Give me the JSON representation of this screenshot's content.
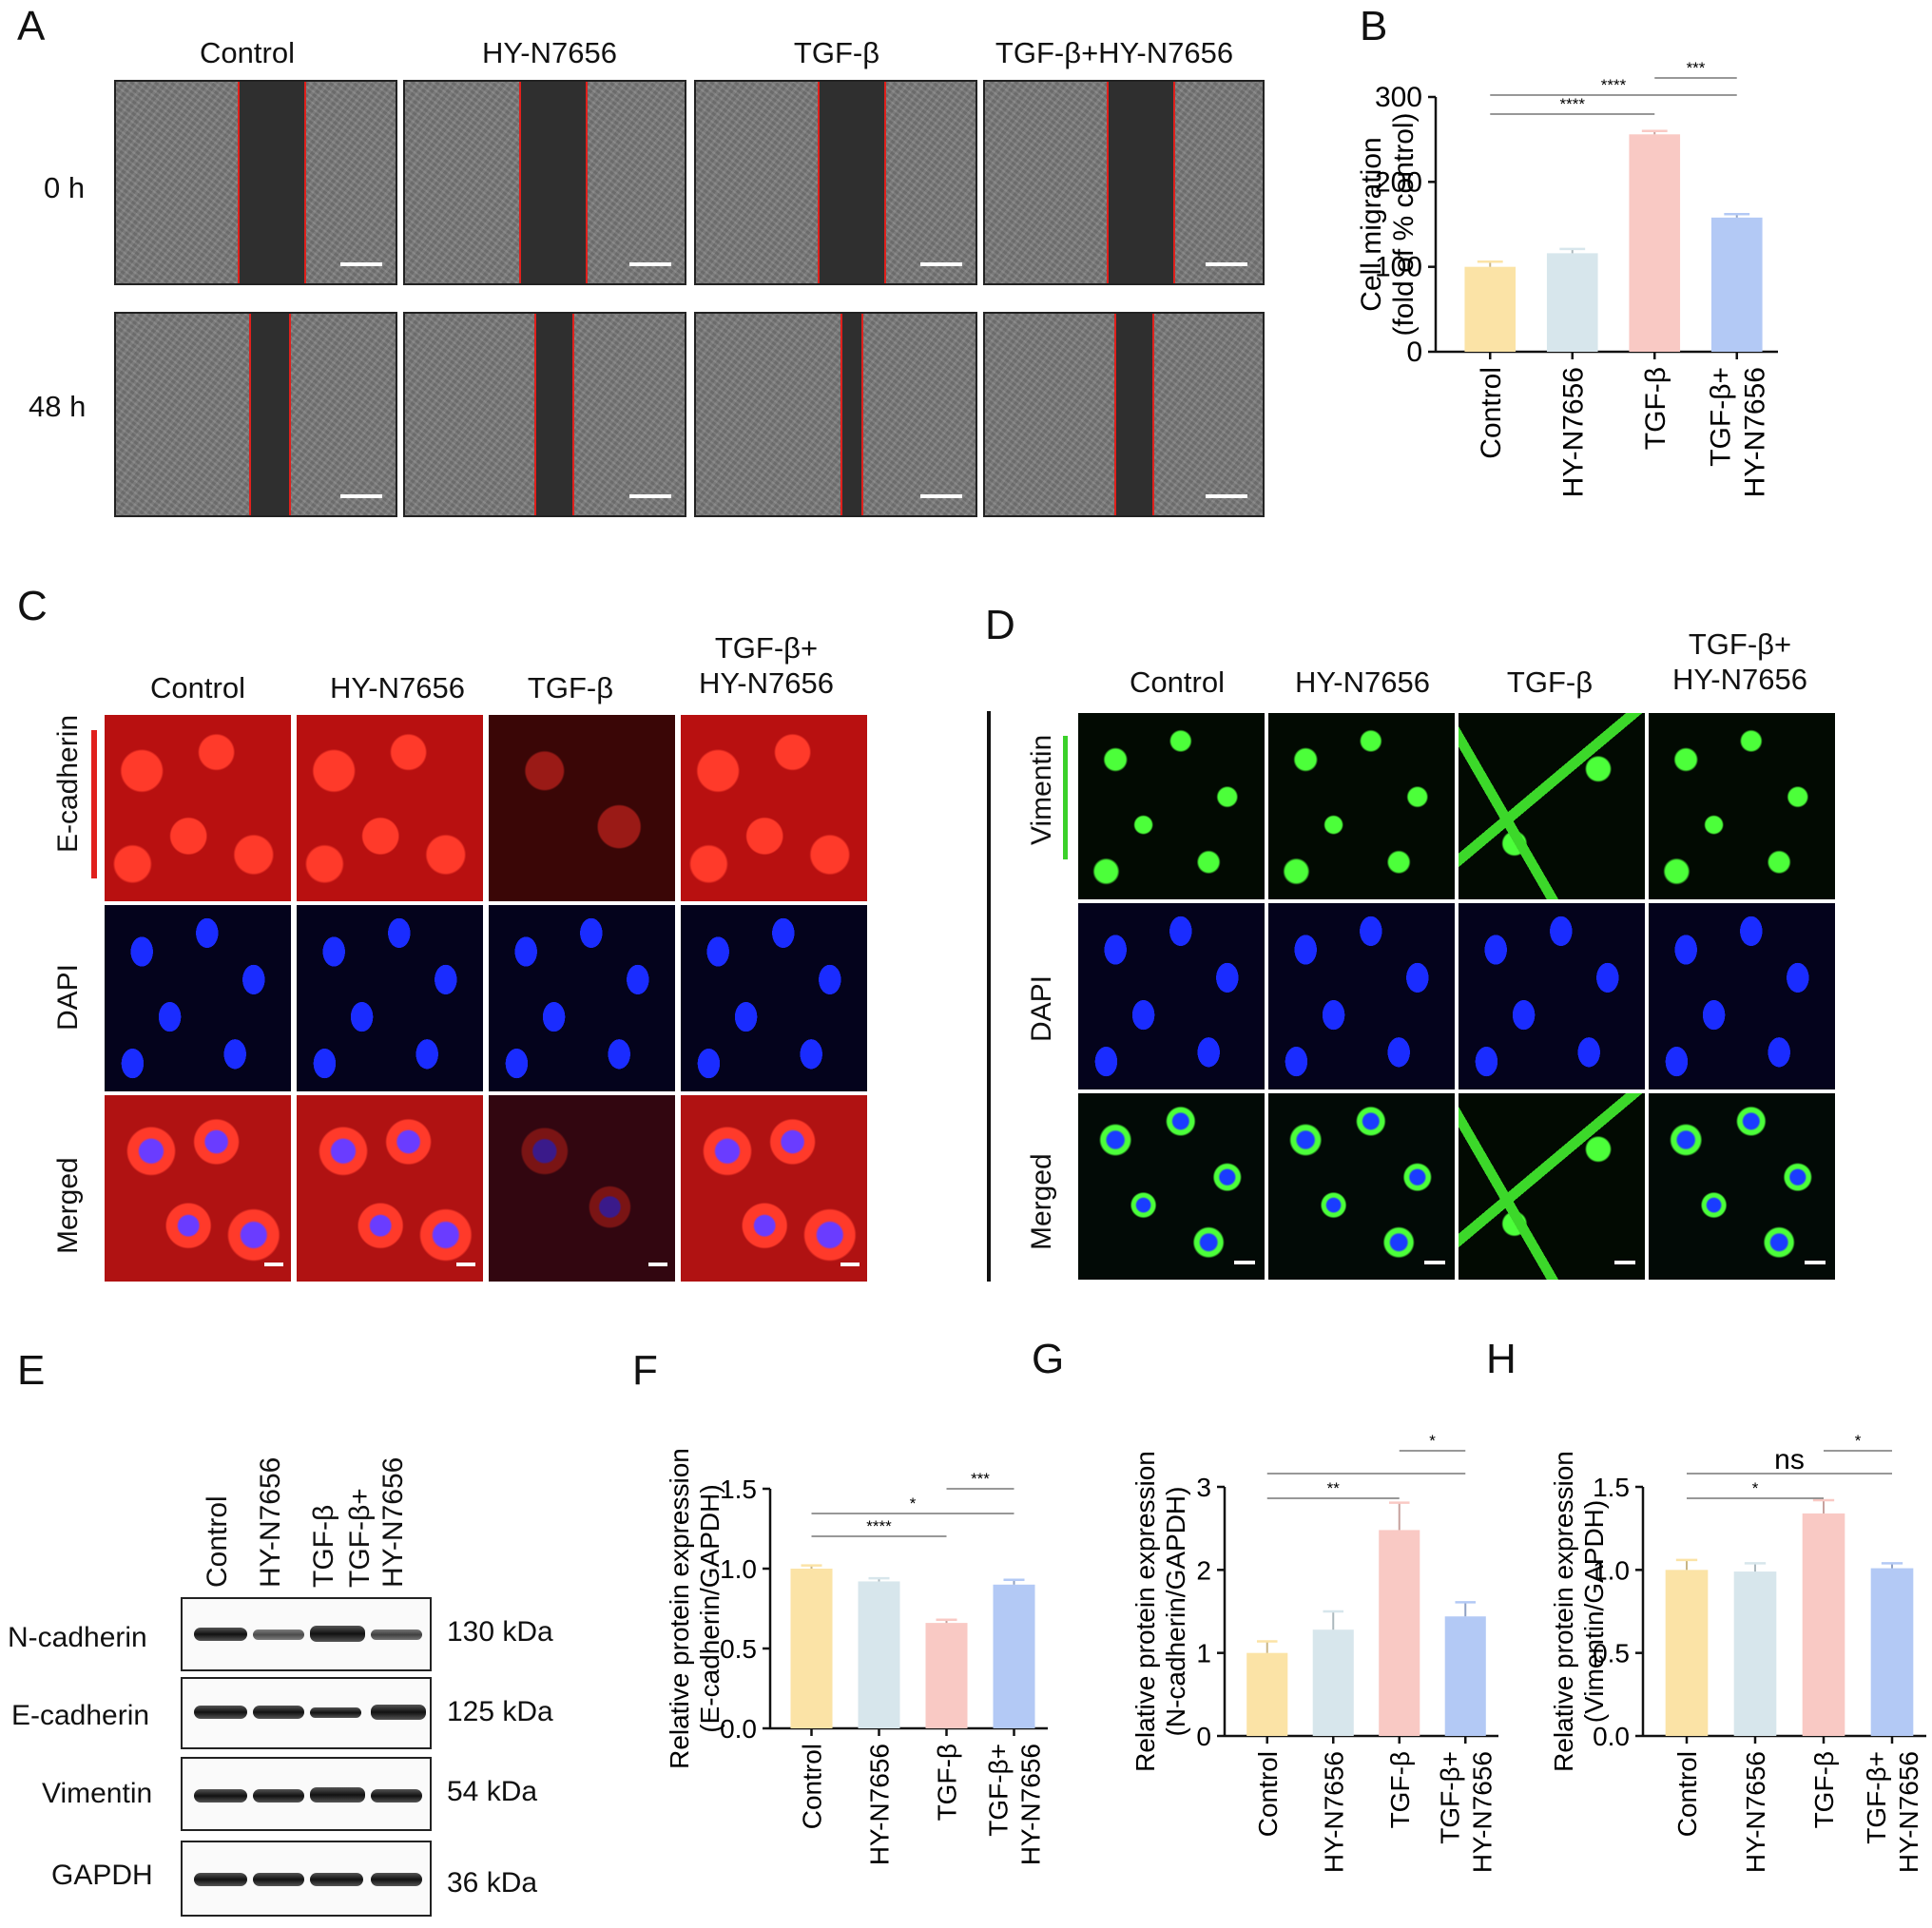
{
  "panel_letters": {
    "A": "A",
    "B": "B",
    "C": "C",
    "D": "D",
    "E": "E",
    "F": "F",
    "G": "G",
    "H": "H"
  },
  "panel_a": {
    "columns": [
      "Control",
      "HY-N7656",
      "TGF-β",
      "TGF-β+HY-N7656"
    ],
    "rows": [
      "0 h",
      "48 h"
    ]
  },
  "panel_c": {
    "columns": [
      "Control",
      "HY-N7656",
      "TGF-β",
      "TGF-β+\nHY-N7656"
    ],
    "rows": [
      "E-cadherin",
      "DAPI",
      "Merged"
    ],
    "marker_color": "#e0201c"
  },
  "panel_d": {
    "columns": [
      "Control",
      "HY-N7656",
      "TGF-β",
      "TGF-β+\nHY-N7656"
    ],
    "rows": [
      "Vimentin",
      "DAPI",
      "Merged"
    ],
    "marker_color": "#3bd12a"
  },
  "panel_e": {
    "lanes": [
      "Control",
      "HY-N7656",
      "TGF-β",
      "TGF-β+\nHY-N7656"
    ],
    "blots": [
      {
        "protein": "N-cadherin",
        "kda": "130 kDa"
      },
      {
        "protein": "E-cadherin",
        "kda": "125 kDa"
      },
      {
        "protein": "Vimentin",
        "kda": "54 kDa"
      },
      {
        "protein": "GAPDH",
        "kda": "36 kDa"
      }
    ]
  },
  "chart_data": [
    {
      "panel": "B",
      "type": "bar",
      "categories": [
        "Control",
        "HY-N7656",
        "TGF-β",
        "TGF-β+\nHY-N7656"
      ],
      "values": [
        100,
        116,
        256,
        158
      ],
      "errors": [
        6,
        5,
        4,
        4
      ],
      "ylabel": "Cell migration\n(fold of % control)",
      "ylim": [
        0,
        300
      ],
      "yticks": [
        "0",
        "100",
        "200",
        "300"
      ],
      "colors": [
        "#fbe3a6",
        "#d7e6ec",
        "#f9c9c4",
        "#b3c9f5"
      ],
      "significance": [
        {
          "from": 0,
          "to": 2,
          "label": "****"
        },
        {
          "from": 0,
          "to": 3,
          "label": "****"
        },
        {
          "from": 2,
          "to": 3,
          "label": "***"
        }
      ]
    },
    {
      "panel": "F",
      "type": "bar",
      "categories": [
        "Control",
        "HY-N7656",
        "TGF-β",
        "TGF-β+\nHY-N7656"
      ],
      "values": [
        1.0,
        0.92,
        0.66,
        0.9
      ],
      "errors": [
        0.02,
        0.02,
        0.02,
        0.03
      ],
      "ylabel": "Relative protein expression\n(E-cadherin/GAPDH)",
      "ylim": [
        0,
        1.5
      ],
      "yticks": [
        "0.0",
        "0.5",
        "1.0",
        "1.5"
      ],
      "colors": [
        "#fbe3a6",
        "#d7e6ec",
        "#f9c9c4",
        "#b3c9f5"
      ],
      "significance": [
        {
          "from": 0,
          "to": 2,
          "label": "****"
        },
        {
          "from": 0,
          "to": 3,
          "label": "*"
        },
        {
          "from": 2,
          "to": 3,
          "label": "***"
        }
      ]
    },
    {
      "panel": "G",
      "type": "bar",
      "categories": [
        "Control",
        "HY-N7656",
        "TGF-β",
        "TGF-β+\nHY-N7656"
      ],
      "values": [
        1.0,
        1.28,
        2.48,
        1.44
      ],
      "errors": [
        0.14,
        0.22,
        0.33,
        0.17
      ],
      "ylabel": "Relative protein expression\n(N-cadherin/GAPDH)",
      "ylim": [
        0,
        3
      ],
      "yticks": [
        "0",
        "1",
        "2",
        "3"
      ],
      "colors": [
        "#fbe3a6",
        "#d7e6ec",
        "#f9c9c4",
        "#b3c9f5"
      ],
      "significance": [
        {
          "from": 0,
          "to": 2,
          "label": "**"
        },
        {
          "from": 0,
          "to": 3,
          "label": ""
        },
        {
          "from": 2,
          "to": 3,
          "label": "*"
        }
      ]
    },
    {
      "panel": "H",
      "type": "bar",
      "categories": [
        "Control",
        "HY-N7656",
        "TGF-β",
        "TGF-β+\nHY-N7656"
      ],
      "values": [
        1.0,
        0.99,
        1.34,
        1.01
      ],
      "errors": [
        0.06,
        0.05,
        0.08,
        0.03
      ],
      "ylabel": "Relative protein expression\n(Vimentin/GAPDH)",
      "ylim": [
        0,
        1.5
      ],
      "yticks": [
        "0.0",
        "0.5",
        "1.0",
        "1.5"
      ],
      "colors": [
        "#fbe3a6",
        "#d7e6ec",
        "#f9c9c4",
        "#b3c9f5"
      ],
      "significance": [
        {
          "from": 0,
          "to": 2,
          "label": "*"
        },
        {
          "from": 0,
          "to": 3,
          "label": "ns"
        },
        {
          "from": 2,
          "to": 3,
          "label": "*"
        }
      ]
    }
  ]
}
